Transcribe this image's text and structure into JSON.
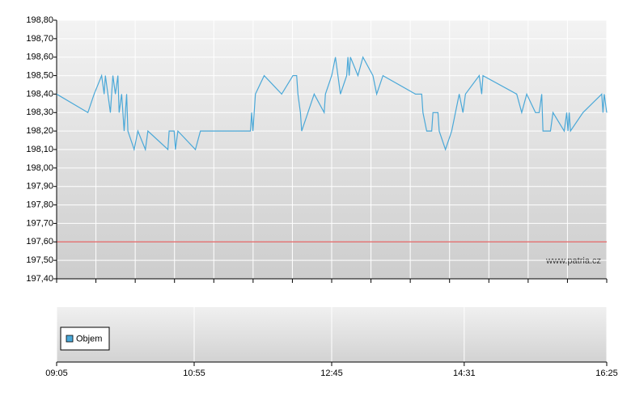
{
  "chart_data": {
    "type": "line",
    "x": [
      545,
      570,
      575,
      581,
      583,
      584,
      588,
      590,
      592,
      594,
      595,
      597,
      599,
      601,
      602,
      607,
      610,
      616,
      618,
      634,
      635,
      639,
      640,
      642,
      656,
      660,
      700,
      701,
      702,
      704,
      711,
      725,
      734,
      737,
      738,
      740,
      741,
      746,
      751,
      759,
      760,
      765,
      768,
      772,
      777,
      778,
      779,
      780,
      786,
      790,
      798,
      801,
      806,
      832,
      837,
      838,
      841,
      845,
      846,
      850,
      851,
      856,
      861,
      867,
      870,
      872,
      883,
      885,
      886,
      913,
      917,
      921,
      928,
      931,
      933,
      934,
      940,
      942,
      951,
      953,
      954,
      955,
      956,
      966,
      981,
      982,
      983,
      985
    ],
    "values": [
      198.4,
      198.3,
      198.4,
      198.5,
      198.4,
      198.5,
      198.3,
      198.5,
      198.4,
      198.5,
      198.3,
      198.4,
      198.2,
      198.4,
      198.2,
      198.1,
      198.2,
      198.1,
      198.2,
      198.1,
      198.2,
      198.2,
      198.1,
      198.2,
      198.1,
      198.2,
      198.2,
      198.3,
      198.2,
      198.4,
      198.5,
      198.4,
      198.5,
      198.5,
      198.4,
      198.3,
      198.2,
      198.3,
      198.4,
      198.3,
      198.4,
      198.5,
      198.6,
      198.4,
      198.5,
      198.6,
      198.5,
      198.6,
      198.5,
      198.6,
      198.5,
      198.4,
      198.5,
      198.4,
      198.4,
      198.3,
      198.2,
      198.2,
      198.3,
      198.3,
      198.2,
      198.1,
      198.2,
      198.4,
      198.3,
      198.4,
      198.5,
      198.4,
      198.5,
      198.4,
      198.3,
      198.4,
      198.3,
      198.3,
      198.4,
      198.2,
      198.2,
      198.3,
      198.2,
      198.3,
      198.2,
      198.3,
      198.2,
      198.3,
      198.4,
      198.3,
      198.4,
      198.3
    ],
    "color": "#4aa8d8",
    "xlim": [
      545,
      985
    ],
    "xticks": [
      {
        "value": 545,
        "label": "09:05"
      },
      {
        "value": 655,
        "label": "10:55"
      },
      {
        "value": 765,
        "label": "12:45"
      },
      {
        "value": 871,
        "label": "14:31"
      },
      {
        "value": 985,
        "label": "16:25"
      }
    ],
    "ylim": [
      197.4,
      198.8
    ],
    "yticks": [
      {
        "value": 197.4,
        "label": "197,40"
      },
      {
        "value": 197.5,
        "label": "197,50"
      },
      {
        "value": 197.6,
        "label": "197,60"
      },
      {
        "value": 197.7,
        "label": "197,70"
      },
      {
        "value": 197.8,
        "label": "197,80"
      },
      {
        "value": 197.9,
        "label": "197,90"
      },
      {
        "value": 198.0,
        "label": "198,00"
      },
      {
        "value": 198.1,
        "label": "198,10"
      },
      {
        "value": 198.2,
        "label": "198,20"
      },
      {
        "value": 198.3,
        "label": "198,30"
      },
      {
        "value": 198.4,
        "label": "198,40"
      },
      {
        "value": 198.5,
        "label": "198,50"
      },
      {
        "value": 198.6,
        "label": "198,60"
      },
      {
        "value": 198.7,
        "label": "198,70"
      },
      {
        "value": 198.8,
        "label": "198,80"
      }
    ],
    "reference_line": 197.6,
    "reference_color": "#e06060",
    "watermark": "www.patria.cz",
    "volume_legend": "Objem",
    "volume_color": "#4aa8d8",
    "grid": true
  }
}
